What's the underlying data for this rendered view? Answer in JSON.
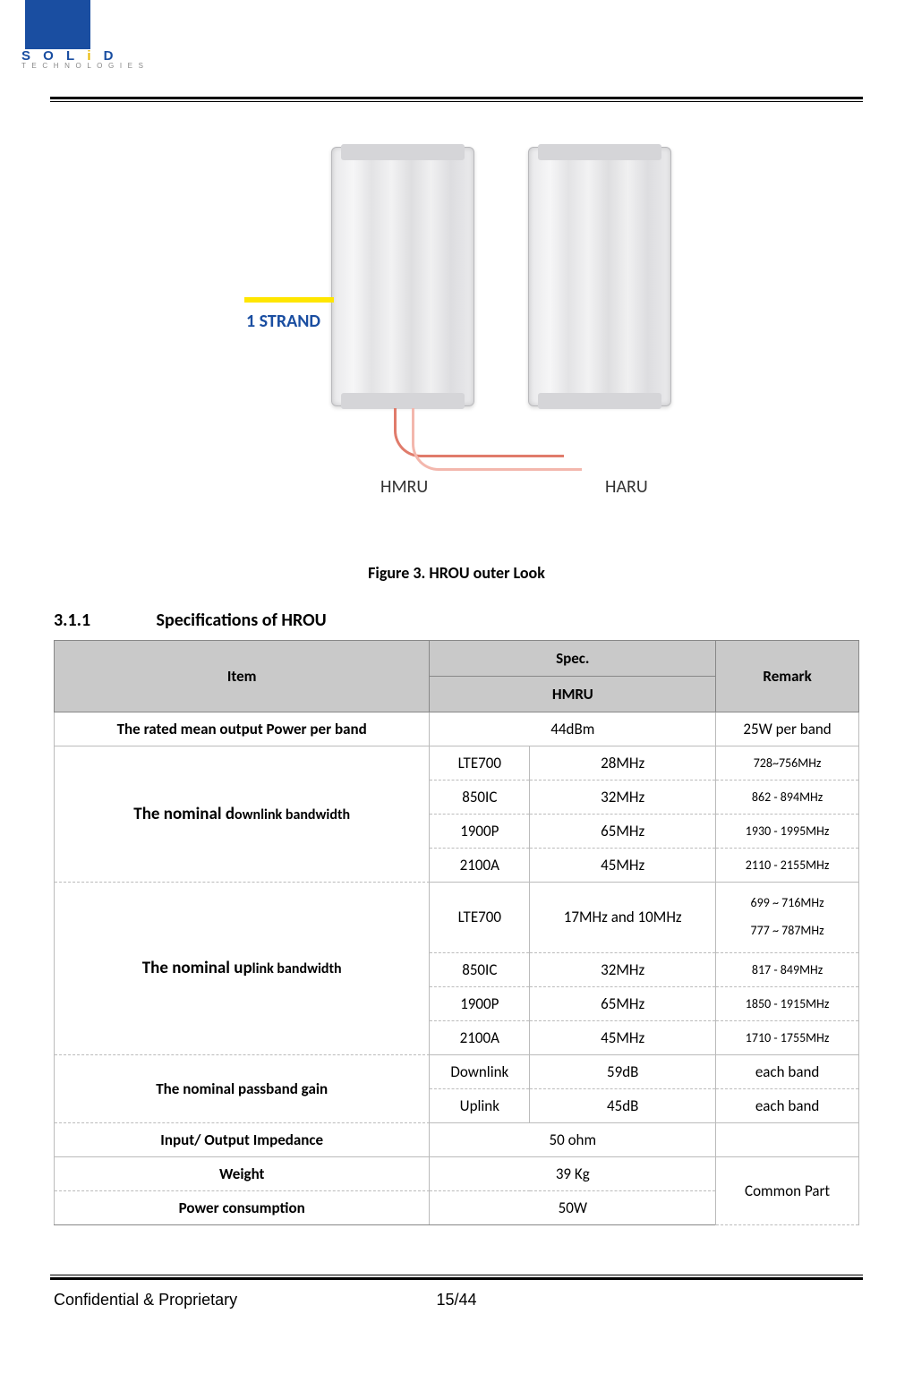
{
  "logo": {
    "main": "S O L i D",
    "sub": "T E C H N O L O G I E S"
  },
  "figure": {
    "strand_label": "1 STRAND",
    "dev1_label": "HMRU",
    "dev2_label": "HARU",
    "caption": "Figure 3. HROU outer Look"
  },
  "section": {
    "num": "3.1.1",
    "title": "Specifications of HROU"
  },
  "headers": {
    "item": "Item",
    "spec": "Spec.",
    "hmru": "HMRU",
    "remark": "Remark"
  },
  "rows": {
    "rated_power": {
      "item": "The rated mean output Power per band",
      "val": "44dBm",
      "remark": "25W per band"
    },
    "dl": {
      "item_b": "The nominal d",
      "item_s": "ownlink bandwidth",
      "r1": {
        "a": "LTE700",
        "b": "28MHz",
        "c": "728~756MHz"
      },
      "r2": {
        "a": "850IC",
        "b": "32MHz",
        "c": "862 - 894MHz"
      },
      "r3": {
        "a": "1900P",
        "b": "65MHz",
        "c": "1930 - 1995MHz"
      },
      "r4": {
        "a": "2100A",
        "b": "45MHz",
        "c": "2110 - 2155MHz"
      }
    },
    "ul": {
      "item_b": "The nominal up",
      "item_s": "link bandwidth",
      "r1": {
        "a": "LTE700",
        "b": "17MHz and 10MHz",
        "c1": "699 ~ 716MHz",
        "c2": "777 ~ 787MHz"
      },
      "r2": {
        "a": "850IC",
        "b": "32MHz",
        "c": "817 - 849MHz"
      },
      "r3": {
        "a": "1900P",
        "b": "65MHz",
        "c": "1850 - 1915MHz"
      },
      "r4": {
        "a": "2100A",
        "b": "45MHz",
        "c": "1710 - 1755MHz"
      }
    },
    "gain": {
      "item": "The nominal passband gain",
      "r1": {
        "a": "Downlink",
        "b": "59dB",
        "c": "each band"
      },
      "r2": {
        "a": "Uplink",
        "b": "45dB",
        "c": "each band"
      }
    },
    "imp": {
      "item": "Input/ Output Impedance",
      "val": "50 ohm",
      "remark": ""
    },
    "weight": {
      "item": "Weight",
      "val": "39 Kg"
    },
    "power": {
      "item": "Power consumption",
      "val": "50W"
    },
    "common_remark": "Common Part"
  },
  "footer": {
    "left": "Confidential & Proprietary",
    "page": "15/44"
  }
}
